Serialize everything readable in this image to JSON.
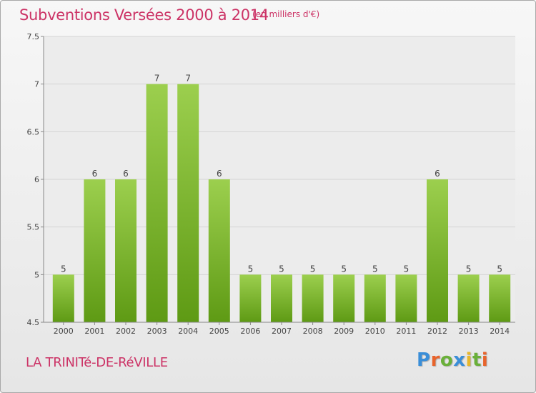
{
  "header": {
    "title": "Subventions Versées 2000 à 2014",
    "subtitle": "(en milliers d'€)"
  },
  "footer": {
    "commune": "LA TRINITé-DE-RéVILLE",
    "logo_text": "Proxiti"
  },
  "colors": {
    "title": "#cc3366",
    "bar_top": "#9ccf4e",
    "bar_bottom": "#5e9a14",
    "logo": [
      "#3a8ed8",
      "#e8642c",
      "#6ab03a",
      "#3a8ed8",
      "#e8b82c",
      "#6ab03a",
      "#e8642c"
    ]
  },
  "chart_data": {
    "type": "bar",
    "categories": [
      "2000",
      "2001",
      "2002",
      "2003",
      "2004",
      "2005",
      "2006",
      "2007",
      "2008",
      "2009",
      "2010",
      "2011",
      "2012",
      "2013",
      "2014"
    ],
    "values": [
      5,
      6,
      6,
      7,
      7,
      6,
      5,
      5,
      5,
      5,
      5,
      5,
      6,
      5,
      5
    ],
    "data_labels": [
      "5",
      "6",
      "6",
      "7",
      "7",
      "6",
      "5",
      "5",
      "5",
      "5",
      "5",
      "5",
      "6",
      "5",
      "5"
    ],
    "ylim": [
      4.5,
      7.5
    ],
    "yticks": [
      4.5,
      5,
      5.5,
      6,
      6.5,
      7,
      7.5
    ],
    "ytick_labels": [
      "4.5",
      "5",
      "5.5",
      "6",
      "6.5",
      "7",
      "7.5"
    ],
    "grid": true
  }
}
